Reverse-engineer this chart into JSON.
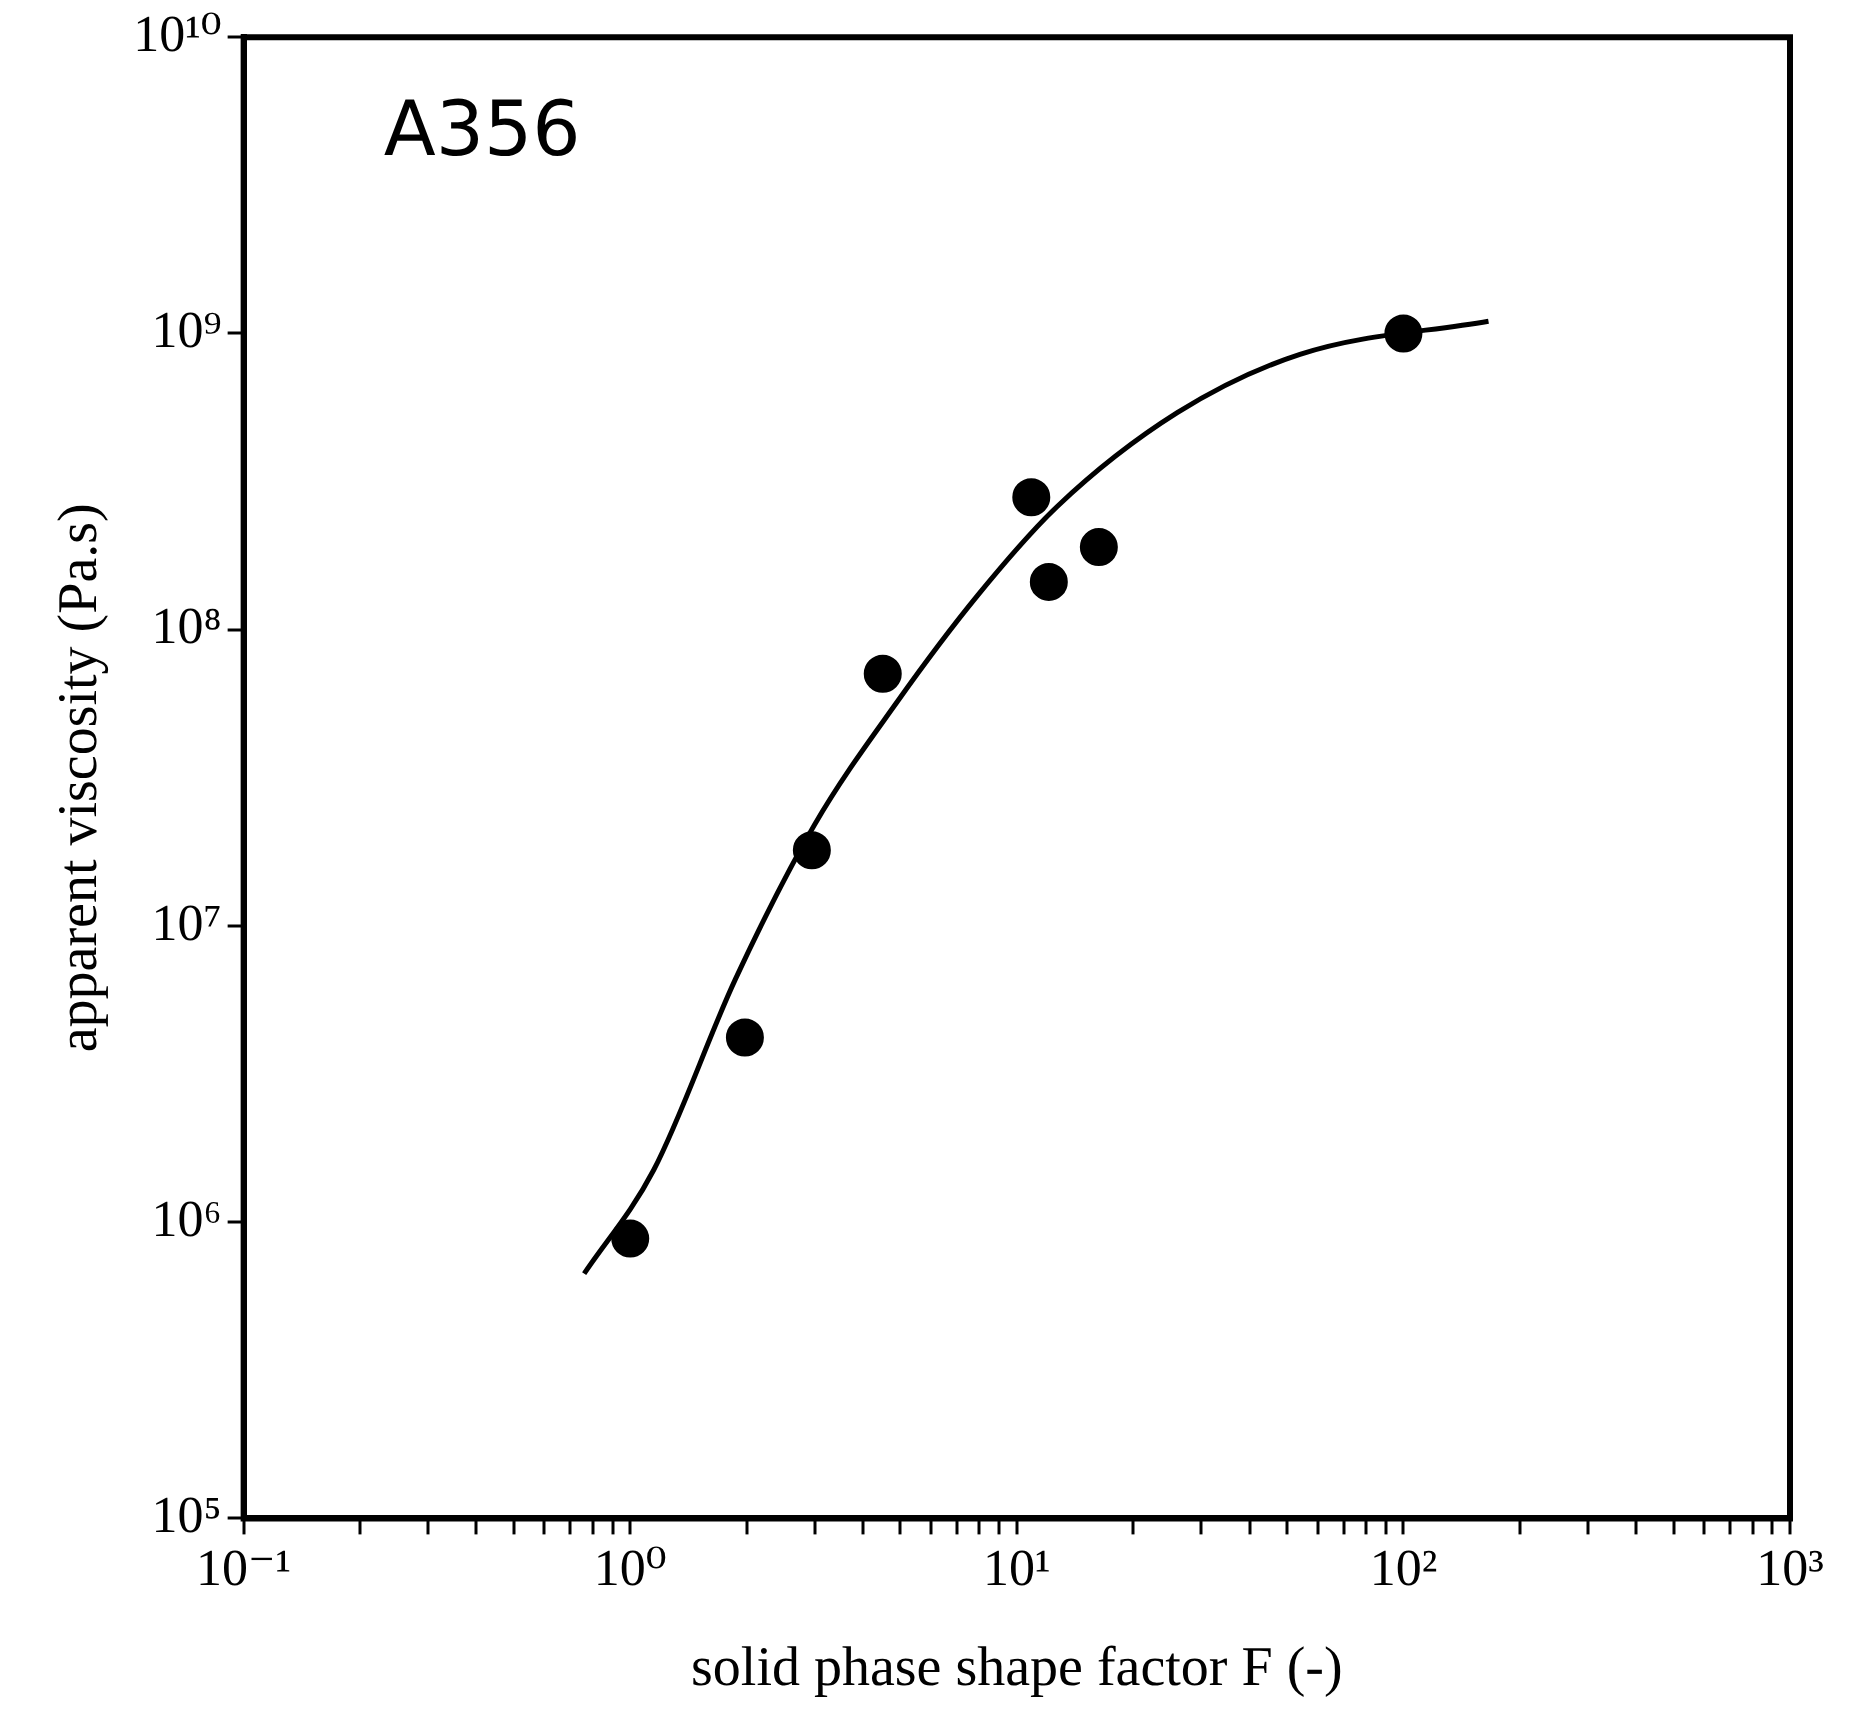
{
  "chart_data": {
    "type": "scatter",
    "xlabel": "solid phase shape factor F (-)",
    "ylabel": "apparent viscosity (Pa.s)",
    "annotations": [
      "A356"
    ],
    "log": "xy",
    "grid": false,
    "legend": false,
    "xlim": [
      0.1,
      1000
    ],
    "ylim": [
      100000,
      10000000000
    ],
    "xticks": [
      {
        "value": 0.1,
        "label": "10⁻¹"
      },
      {
        "value": 0.2,
        "label": null
      },
      {
        "value": 0.3,
        "label": null
      },
      {
        "value": 0.4,
        "label": null
      },
      {
        "value": 0.5,
        "label": null
      },
      {
        "value": 0.6,
        "label": null
      },
      {
        "value": 0.7,
        "label": null
      },
      {
        "value": 0.8,
        "label": null
      },
      {
        "value": 0.9,
        "label": null
      },
      {
        "value": 1,
        "label": "10⁰"
      },
      {
        "value": 2,
        "label": null
      },
      {
        "value": 3,
        "label": null
      },
      {
        "value": 4,
        "label": null
      },
      {
        "value": 5,
        "label": null
      },
      {
        "value": 6,
        "label": null
      },
      {
        "value": 7,
        "label": null
      },
      {
        "value": 8,
        "label": null
      },
      {
        "value": 9,
        "label": null
      },
      {
        "value": 10,
        "label": "10¹"
      },
      {
        "value": 20,
        "label": null
      },
      {
        "value": 30,
        "label": null
      },
      {
        "value": 40,
        "label": null
      },
      {
        "value": 50,
        "label": null
      },
      {
        "value": 60,
        "label": null
      },
      {
        "value": 70,
        "label": null
      },
      {
        "value": 80,
        "label": null
      },
      {
        "value": 90,
        "label": null
      },
      {
        "value": 100,
        "label": "10²"
      },
      {
        "value": 200,
        "label": null
      },
      {
        "value": 300,
        "label": null
      },
      {
        "value": 400,
        "label": null
      },
      {
        "value": 500,
        "label": null
      },
      {
        "value": 600,
        "label": null
      },
      {
        "value": 700,
        "label": null
      },
      {
        "value": 800,
        "label": null
      },
      {
        "value": 900,
        "label": null
      },
      {
        "value": 1000,
        "label": "10³"
      }
    ],
    "yticks": [
      {
        "value": 100000,
        "label": "10⁵"
      },
      {
        "value": 1000000,
        "label": "10⁶"
      },
      {
        "value": 10000000,
        "label": "10⁷"
      },
      {
        "value": 100000000,
        "label": "10⁸"
      },
      {
        "value": 1000000000,
        "label": "10⁹"
      },
      {
        "value": 10000000000,
        "label": "10¹⁰"
      }
    ],
    "series": [
      {
        "color": "#000000",
        "marker": "circle",
        "x": [
          1.0,
          1.98,
          2.95,
          4.5,
          10.9,
          12.1,
          16.3,
          100
        ],
        "values": [
          880000,
          4200000,
          18000000,
          71000000,
          280000000,
          145000000,
          190000000,
          1000000000
        ]
      },
      {
        "type": "line",
        "color": "#000000",
        "marker": "none",
        "line_style": "solid",
        "x": [
          0.76,
          1.15,
          1.87,
          3.0,
          4.9,
          7.9,
          12.7,
          26,
          54,
          166
        ],
        "values": [
          670000,
          1500000,
          6600000,
          22000000,
          57000000,
          130000000,
          260000000,
          540000000,
          850000000,
          1100000000
        ]
      }
    ]
  }
}
